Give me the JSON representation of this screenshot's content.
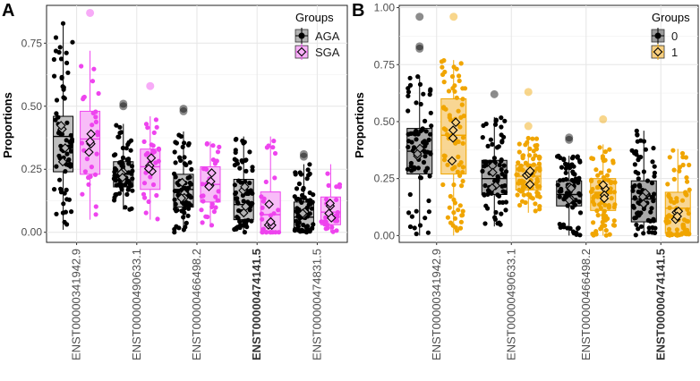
{
  "chart_data": [
    {
      "panel_label": "A",
      "type": "boxplot",
      "ylabel": "Proportions",
      "ylim": [
        0,
        0.9
      ],
      "yticks": [
        0.0,
        0.25,
        0.5,
        0.75
      ],
      "ytick_labels": [
        "0.00",
        "0.25",
        "0.50",
        "0.75"
      ],
      "categories": [
        "ENST00000341942.9",
        "ENST00000490633.1",
        "ENST00000466498.2",
        "ENST00000474141.5",
        "ENST00000474831.5"
      ],
      "bold_categories": [
        "ENST00000474141.5"
      ],
      "legend": {
        "title": "Groups",
        "position": "top-right",
        "entries": [
          "AGA",
          "SGA"
        ]
      },
      "series": [
        {
          "name": "AGA",
          "color": "#000000",
          "fill": "#b3b3b3",
          "boxes": [
            {
              "q1": 0.24,
              "median": 0.38,
              "q3": 0.46,
              "lo": 0.01,
              "hi": 0.83,
              "outliers": []
            },
            {
              "q1": 0.18,
              "median": 0.23,
              "q3": 0.28,
              "lo": 0.09,
              "hi": 0.43,
              "outliers": [
                0.5,
                0.51
              ]
            },
            {
              "q1": 0.1,
              "median": 0.17,
              "q3": 0.23,
              "lo": 0.0,
              "hi": 0.4,
              "outliers": [
                0.48,
                0.49
              ]
            },
            {
              "q1": 0.05,
              "median": 0.11,
              "q3": 0.21,
              "lo": 0.0,
              "hi": 0.38,
              "outliers": []
            },
            {
              "q1": 0.01,
              "median": 0.06,
              "q3": 0.12,
              "lo": 0.0,
              "hi": 0.27,
              "outliers": [
                0.3,
                0.31
              ]
            }
          ]
        },
        {
          "name": "SGA",
          "color": "#ee44ee",
          "fill": "#f7b0f7",
          "boxes": [
            {
              "q1": 0.23,
              "median": 0.37,
              "q3": 0.48,
              "lo": 0.05,
              "hi": 0.72,
              "outliers": [
                0.87
              ]
            },
            {
              "q1": 0.17,
              "median": 0.26,
              "q3": 0.33,
              "lo": 0.05,
              "hi": 0.46,
              "outliers": [
                0.58
              ]
            },
            {
              "q1": 0.12,
              "median": 0.19,
              "q3": 0.26,
              "lo": 0.02,
              "hi": 0.36,
              "outliers": []
            },
            {
              "q1": 0.0,
              "median": 0.07,
              "q3": 0.16,
              "lo": 0.0,
              "hi": 0.38,
              "outliers": []
            },
            {
              "q1": 0.03,
              "median": 0.08,
              "q3": 0.14,
              "lo": 0.0,
              "hi": 0.27,
              "outliers": []
            }
          ]
        }
      ]
    },
    {
      "panel_label": "B",
      "type": "boxplot",
      "ylabel": "Proportions",
      "ylim": [
        0,
        1.0
      ],
      "yticks": [
        0.0,
        0.25,
        0.5,
        0.75,
        1.0
      ],
      "ytick_labels": [
        "0.00",
        "0.25",
        "0.50",
        "0.75",
        "1.00"
      ],
      "categories": [
        "ENST00000341942.9",
        "ENST00000490633.1",
        "ENST00000466498.2",
        "ENST00000474141.5"
      ],
      "bold_categories": [
        "ENST00000474141.5"
      ],
      "legend": {
        "title": "Groups",
        "position": "top-right",
        "entries": [
          "0",
          "1"
        ]
      },
      "series": [
        {
          "name": "0",
          "color": "#000000",
          "fill": "#9a9a9a",
          "boxes": [
            {
              "q1": 0.27,
              "median": 0.37,
              "q3": 0.47,
              "lo": 0.0,
              "hi": 0.7,
              "outliers": [
                0.82,
                0.83,
                0.96
              ]
            },
            {
              "q1": 0.18,
              "median": 0.25,
              "q3": 0.33,
              "lo": 0.04,
              "hi": 0.52,
              "outliers": [
                0.62
              ]
            },
            {
              "q1": 0.13,
              "median": 0.18,
              "q3": 0.24,
              "lo": 0.0,
              "hi": 0.35,
              "outliers": [
                0.42,
                0.43
              ]
            },
            {
              "q1": 0.06,
              "median": 0.16,
              "q3": 0.24,
              "lo": 0.0,
              "hi": 0.46,
              "outliers": []
            }
          ]
        },
        {
          "name": "1",
          "color": "#f0a500",
          "fill": "#f7cf80",
          "boxes": [
            {
              "q1": 0.27,
              "median": 0.44,
              "q3": 0.6,
              "lo": 0.0,
              "hi": 0.77,
              "outliers": [
                0.96
              ]
            },
            {
              "q1": 0.2,
              "median": 0.26,
              "q3": 0.31,
              "lo": 0.1,
              "hi": 0.43,
              "outliers": [
                0.48,
                0.63
              ]
            },
            {
              "q1": 0.11,
              "median": 0.19,
              "q3": 0.25,
              "lo": 0.0,
              "hi": 0.4,
              "outliers": [
                0.51
              ]
            },
            {
              "q1": 0.01,
              "median": 0.12,
              "q3": 0.19,
              "lo": 0.0,
              "hi": 0.38,
              "outliers": []
            }
          ]
        }
      ]
    }
  ]
}
